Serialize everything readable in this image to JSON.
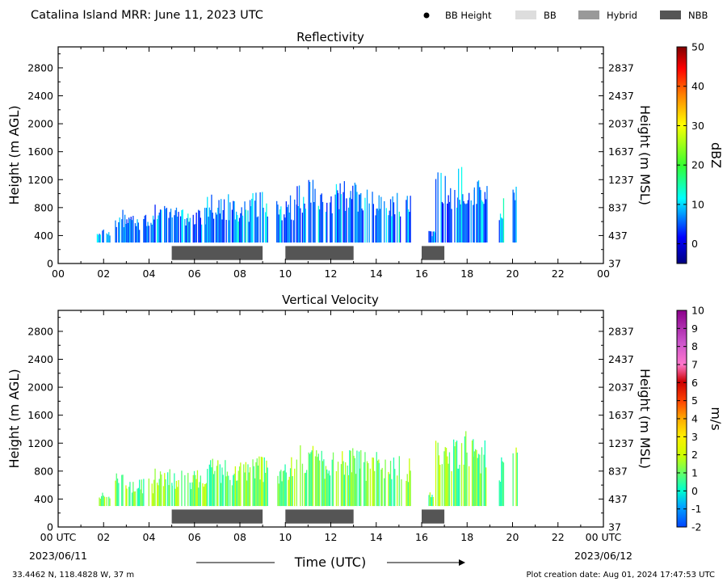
{
  "header": {
    "title": "Catalina Island MRR:  June 11, 2023 UTC",
    "legend": [
      {
        "label": "BB Height",
        "kind": "dot",
        "color": "#000000"
      },
      {
        "label": "BB",
        "kind": "box",
        "color": "#dddddd"
      },
      {
        "label": "Hybrid",
        "kind": "box",
        "color": "#999999"
      },
      {
        "label": "NBB",
        "kind": "box",
        "color": "#555555"
      }
    ]
  },
  "footer": {
    "location": "33.4462 N, 118.4828 W, 37 m",
    "created": "Plot creation date: Aug 01, 2024 17:47:53 UTC",
    "xlabel": "Time (UTC)",
    "start_date": "2023/06/11",
    "end_date": "2023/06/12"
  },
  "chart_data": [
    {
      "type": "heatmap",
      "title": "Reflectivity",
      "ylabel": "Height (m AGL)",
      "ylabel_right": "Height (m MSL)",
      "xlim": [
        0,
        24
      ],
      "ylim": [
        0,
        3100
      ],
      "x_ticks": [
        "00",
        "02",
        "04",
        "06",
        "08",
        "10",
        "12",
        "14",
        "16",
        "18",
        "20",
        "22",
        "00"
      ],
      "y_ticks": [
        0,
        400,
        800,
        1200,
        1600,
        2000,
        2400,
        2800
      ],
      "y_ticks_right": [
        "37",
        "437",
        "837",
        "1237",
        "1637",
        "2037",
        "2437",
        "2837"
      ],
      "colorbar": {
        "label": "dBZ",
        "min": -5,
        "max": 50,
        "ticks": [
          "0",
          "10",
          "20",
          "30",
          "40",
          "50"
        ]
      },
      "nbb_periods": [
        [
          5.0,
          9.0
        ],
        [
          10.0,
          13.0
        ],
        [
          16.0,
          17.0
        ]
      ],
      "echo_columns": [
        {
          "start": 1.7,
          "end": 2.3,
          "top": 500
        },
        {
          "start": 2.5,
          "end": 3.0,
          "top": 780
        },
        {
          "start": 3.0,
          "end": 4.2,
          "top": 700
        },
        {
          "start": 4.2,
          "end": 5.0,
          "top": 850
        },
        {
          "start": 5.0,
          "end": 6.5,
          "top": 820
        },
        {
          "start": 6.5,
          "end": 7.5,
          "top": 1000
        },
        {
          "start": 7.5,
          "end": 8.5,
          "top": 950
        },
        {
          "start": 8.5,
          "end": 9.2,
          "top": 1050
        },
        {
          "start": 9.6,
          "end": 10.5,
          "top": 1000
        },
        {
          "start": 10.5,
          "end": 11.3,
          "top": 1250
        },
        {
          "start": 11.3,
          "end": 12.3,
          "top": 1150
        },
        {
          "start": 12.3,
          "end": 13.3,
          "top": 1200
        },
        {
          "start": 13.3,
          "end": 14.1,
          "top": 1100
        },
        {
          "start": 14.1,
          "end": 14.8,
          "top": 1000
        },
        {
          "start": 14.9,
          "end": 15.1,
          "top": 1050
        },
        {
          "start": 15.3,
          "end": 15.5,
          "top": 1000
        },
        {
          "start": 16.3,
          "end": 16.6,
          "top": 500
        },
        {
          "start": 16.6,
          "end": 17.6,
          "top": 1350
        },
        {
          "start": 17.6,
          "end": 18.3,
          "top": 1400
        },
        {
          "start": 18.3,
          "end": 18.9,
          "top": 1250
        },
        {
          "start": 19.4,
          "end": 19.6,
          "top": 1000
        },
        {
          "start": 20.0,
          "end": 20.2,
          "top": 1200
        }
      ]
    },
    {
      "type": "heatmap",
      "title": "Vertical Velocity",
      "ylabel": "Height (m AGL)",
      "ylabel_right": "Height (m MSL)",
      "xlim": [
        0,
        24
      ],
      "ylim": [
        0,
        3100
      ],
      "x_ticks": [
        "00 UTC",
        "02",
        "04",
        "06",
        "08",
        "10",
        "12",
        "14",
        "16",
        "18",
        "20",
        "22",
        "00 UTC"
      ],
      "y_ticks": [
        0,
        400,
        800,
        1200,
        1600,
        2000,
        2400,
        2800
      ],
      "y_ticks_right": [
        "37",
        "437",
        "837",
        "1237",
        "1637",
        "2037",
        "2437",
        "2837"
      ],
      "colorbar": {
        "label": "m/s",
        "min": -2,
        "max": 10,
        "ticks": [
          "-2",
          "-1",
          "0",
          "1",
          "2",
          "3",
          "4",
          "5",
          "6",
          "7",
          "8",
          "9",
          "10"
        ]
      },
      "nbb_periods": [
        [
          5.0,
          9.0
        ],
        [
          10.0,
          13.0
        ],
        [
          16.0,
          17.0
        ]
      ],
      "echo_columns": [
        {
          "start": 1.7,
          "end": 2.3,
          "top": 500
        },
        {
          "start": 2.5,
          "end": 3.0,
          "top": 780
        },
        {
          "start": 3.0,
          "end": 4.2,
          "top": 700
        },
        {
          "start": 4.2,
          "end": 5.0,
          "top": 850
        },
        {
          "start": 5.0,
          "end": 6.5,
          "top": 820
        },
        {
          "start": 6.5,
          "end": 7.5,
          "top": 1000
        },
        {
          "start": 7.5,
          "end": 8.5,
          "top": 950
        },
        {
          "start": 8.5,
          "end": 9.2,
          "top": 1050
        },
        {
          "start": 9.6,
          "end": 10.5,
          "top": 1000
        },
        {
          "start": 10.5,
          "end": 11.3,
          "top": 1250
        },
        {
          "start": 11.3,
          "end": 12.3,
          "top": 1150
        },
        {
          "start": 12.3,
          "end": 13.3,
          "top": 1200
        },
        {
          "start": 13.3,
          "end": 14.1,
          "top": 1100
        },
        {
          "start": 14.1,
          "end": 14.8,
          "top": 1000
        },
        {
          "start": 14.9,
          "end": 15.1,
          "top": 1050
        },
        {
          "start": 15.3,
          "end": 15.5,
          "top": 1000
        },
        {
          "start": 16.3,
          "end": 16.6,
          "top": 500
        },
        {
          "start": 16.6,
          "end": 17.6,
          "top": 1350
        },
        {
          "start": 17.6,
          "end": 18.3,
          "top": 1400
        },
        {
          "start": 18.3,
          "end": 18.9,
          "top": 1250
        },
        {
          "start": 19.4,
          "end": 19.6,
          "top": 1000
        },
        {
          "start": 20.0,
          "end": 20.2,
          "top": 1200
        }
      ]
    }
  ]
}
